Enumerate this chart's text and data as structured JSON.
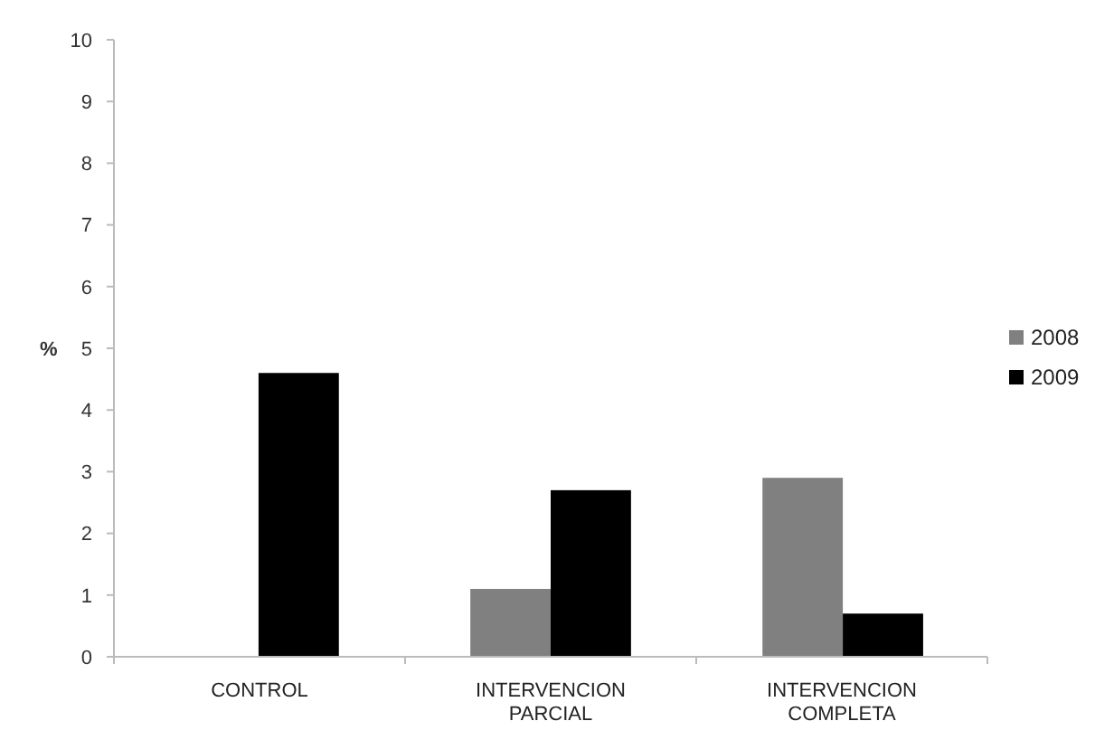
{
  "chart_data": {
    "type": "bar",
    "ylabel": "%",
    "categories": [
      "CONTROL",
      "INTERVENCION PARCIAL",
      "INTERVENCION COMPLETA"
    ],
    "series": [
      {
        "name": "2008",
        "color": "#808080",
        "values": [
          0,
          1.1,
          2.9
        ]
      },
      {
        "name": "2009",
        "color": "#000000",
        "values": [
          4.6,
          2.7,
          0.7
        ]
      }
    ],
    "ylim": [
      0,
      10
    ],
    "yticks": [
      0,
      1,
      2,
      3,
      4,
      5,
      6,
      7,
      8,
      9,
      10
    ],
    "grid": false,
    "legend": "right"
  }
}
